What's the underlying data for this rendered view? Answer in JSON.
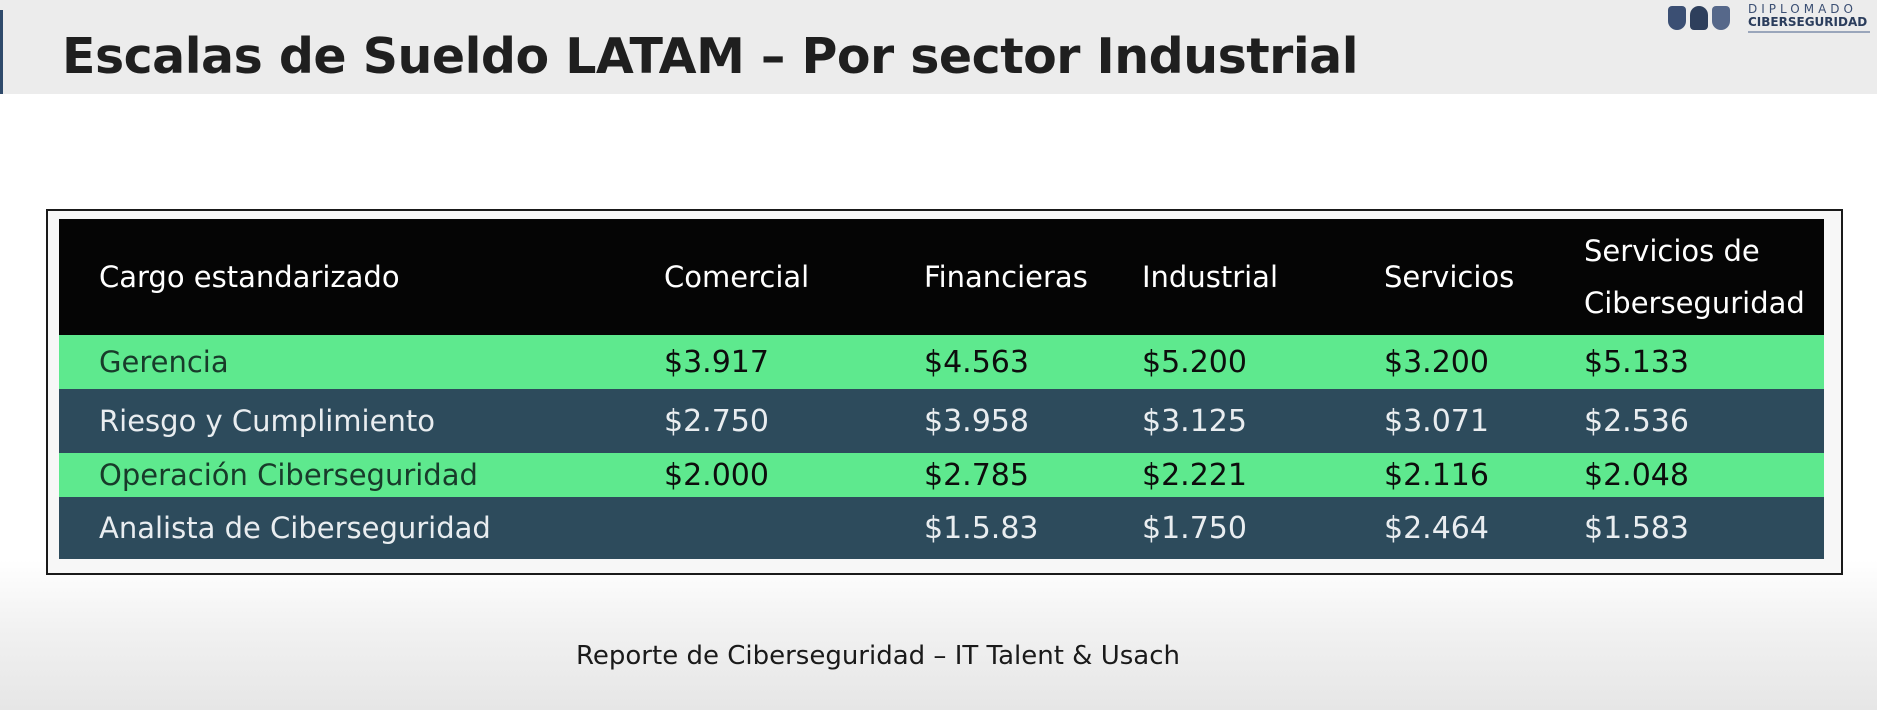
{
  "slide": {
    "title": "Escalas de Sueldo LATAM – Por sector Industrial",
    "logo": {
      "line1": "DIPLOMADO",
      "line2": "CIBERSEGURIDAD"
    },
    "footer": "Reporte de Ciberseguridad – IT Talent & Usach"
  },
  "table": {
    "headers": [
      "Cargo estandarizado",
      "Comercial",
      "Financieras",
      "Industrial",
      "Servicios",
      "Servicios de Ciberseguridad"
    ],
    "rows": [
      [
        "Gerencia",
        "$3.917",
        "$4.563",
        "$5.200",
        "$3.200",
        "$5.133"
      ],
      [
        "Riesgo y Cumplimiento",
        "$2.750",
        "$3.958",
        "$3.125",
        "$3.071",
        "$2.536"
      ],
      [
        "Operación Ciberseguridad",
        "$2.000",
        "$2.785",
        "$2.221",
        "$2.116",
        "$2.048"
      ],
      [
        "Analista de Ciberseguridad",
        "",
        "$1.5.83",
        "$1.750",
        "$2.464",
        "$1.583"
      ]
    ]
  },
  "colors": {
    "header_bg": "#050505",
    "row_green": "#5ee98e",
    "row_blue": "#2d4b5c"
  }
}
